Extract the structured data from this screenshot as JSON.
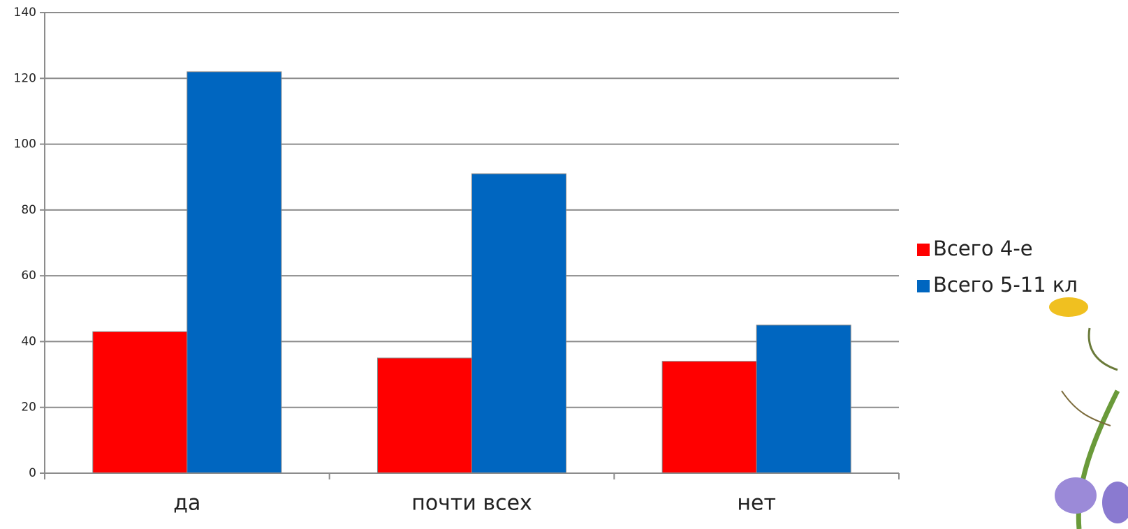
{
  "chart_data": {
    "type": "bar",
    "categories": [
      "да",
      "почти всех",
      "нет"
    ],
    "series": [
      {
        "name": "Всего 4-е",
        "color": "#ff0000",
        "values": [
          43,
          35,
          34
        ]
      },
      {
        "name": "Всего 5-11 кл",
        "color": "#0066c0",
        "values": [
          122,
          91,
          45
        ]
      }
    ],
    "ylim": [
      0,
      140
    ],
    "yticks": [
      0,
      20,
      40,
      60,
      80,
      100,
      120,
      140
    ],
    "grid": true,
    "legend": "right"
  }
}
